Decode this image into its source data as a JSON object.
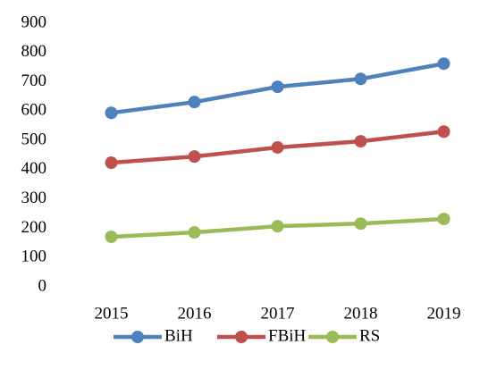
{
  "chart_data": {
    "type": "line",
    "categories": [
      "2015",
      "2016",
      "2017",
      "2018",
      "2019"
    ],
    "series": [
      {
        "name": "BiH",
        "color": "#4f81bd",
        "values": [
          594,
          631,
          683,
          710,
          762
        ]
      },
      {
        "name": "FBiH",
        "color": "#c0504d",
        "values": [
          424,
          445,
          476,
          497,
          530
        ]
      },
      {
        "name": "RS",
        "color": "#9bbb59",
        "values": [
          171,
          186,
          207,
          216,
          232
        ]
      }
    ],
    "ylim": [
      0,
      900
    ],
    "yticks": [
      0,
      100,
      200,
      300,
      400,
      500,
      600,
      700,
      800,
      900
    ],
    "grid": false,
    "legend": "bottom"
  }
}
